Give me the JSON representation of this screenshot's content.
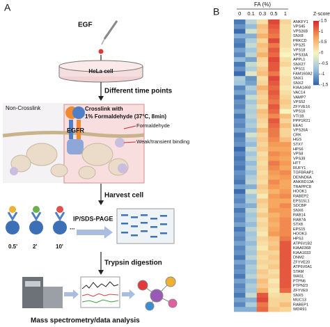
{
  "diagram": {
    "panel_label": "A",
    "egf": "EGF",
    "dish": "HeLa cell",
    "step1": "Different time points",
    "non_crosslink": "Non-Crosslink",
    "crosslink_line1": "Crosslink with",
    "crosslink_line2": "1% Formaldehyde (37°C, 8min)",
    "receptor": "EGFR",
    "legend_formaldehyde": "Formaldehyde",
    "legend_binding": "Weak/transient binding",
    "step2": "Harvest cell",
    "step3": "IP/SDS-PAGE",
    "times": [
      "0.5'",
      "2'",
      "10'",
      "..."
    ],
    "step4": "Trypsin digestion",
    "step5": "Mass spectrometry/data analysis"
  },
  "chart_data": {
    "type": "heatmap",
    "panel_label": "B",
    "x_label": "FA (%)",
    "columns": [
      "0",
      "0.1",
      "0.3",
      "0.5",
      "1"
    ],
    "rows": [
      "ANKFY1",
      "VPS45",
      "VPS26B",
      "SNX8",
      "PRKCD",
      "VPS25",
      "VPS18",
      "VPS33A",
      "APPL1",
      "SNX27",
      "VPS11",
      "FAM160A2",
      "SNX1",
      "SNX2",
      "KIAA1468",
      "VAC14",
      "VAMP7",
      "VPS52",
      "ZFYVE16",
      "VPS16",
      "VTI1B",
      "PPP1R21",
      "EEA1",
      "VPS26A",
      "CRK",
      "HGS",
      "STX7",
      "HPS6",
      "VPS8",
      "VPS39",
      "HTT",
      "RUFY1",
      "TGFBRAP1",
      "DENND6A",
      "ANKRD13A",
      "TRAPPC8",
      "HOOK1",
      "RABEP2",
      "EPS15L1",
      "SDCBP",
      "SNX6",
      "RAB14",
      "RAB7A",
      "STX8",
      "EPS15",
      "HOOK3",
      "HPS3",
      "ATP6V1B2",
      "KIAA0368",
      "KIAA1033",
      "DNM2",
      "ZFYVE20",
      "ATP6V0A1",
      "STAM",
      "WASL",
      "PTPN6",
      "PTPN23",
      "ZFYVE9",
      "SNX5",
      "MUC13",
      "RABEP1",
      "WDR91"
    ],
    "values": [
      [
        -1.3,
        -0.5,
        0.2,
        1.3,
        0.3
      ],
      [
        -1.1,
        -0.8,
        0.5,
        1.2,
        0.2
      ],
      [
        -1.4,
        -0.3,
        0.4,
        1.1,
        0.2
      ],
      [
        -0.9,
        -0.9,
        0.6,
        1.0,
        0.2
      ],
      [
        -1.2,
        -0.6,
        0.3,
        1.3,
        0.2
      ],
      [
        -1.3,
        -0.4,
        0.5,
        1.0,
        0.2
      ],
      [
        -1.0,
        -0.7,
        0.4,
        1.2,
        0.1
      ],
      [
        -1.2,
        -0.5,
        0.6,
        1.1,
        0.0
      ],
      [
        -0.8,
        -1.0,
        0.3,
        1.3,
        0.2
      ],
      [
        -1.3,
        -0.4,
        0.2,
        1.2,
        0.3
      ],
      [
        -1.1,
        -0.6,
        0.4,
        1.2,
        0.1
      ],
      [
        -1.4,
        -0.2,
        0.5,
        1.0,
        0.1
      ],
      [
        -0.6,
        -1.1,
        0.2,
        1.3,
        0.2
      ],
      [
        -0.7,
        -1.0,
        0.3,
        1.2,
        0.2
      ],
      [
        -1.2,
        -0.6,
        0.6,
        1.1,
        0.1
      ],
      [
        -1.0,
        -0.8,
        0.4,
        1.2,
        0.2
      ],
      [
        -1.3,
        -0.4,
        0.3,
        1.1,
        0.3
      ],
      [
        -1.1,
        -0.7,
        0.4,
        1.0,
        0.4
      ],
      [
        -1.2,
        -0.5,
        0.2,
        1.2,
        0.3
      ],
      [
        -1.0,
        -0.6,
        0.5,
        1.1,
        0.0
      ],
      [
        -1.3,
        -0.5,
        0.4,
        0.9,
        0.5
      ],
      [
        -1.1,
        -0.7,
        0.3,
        1.2,
        0.3
      ],
      [
        -1.2,
        -0.6,
        0.2,
        1.1,
        0.5
      ],
      [
        -1.0,
        -0.8,
        0.5,
        1.0,
        0.3
      ],
      [
        -1.3,
        -0.3,
        0.3,
        1.0,
        0.3
      ],
      [
        -1.2,
        -0.6,
        0.4,
        0.9,
        0.5
      ],
      [
        -1.1,
        -0.8,
        0.3,
        0.8,
        0.8
      ],
      [
        -1.4,
        -0.4,
        0.4,
        0.7,
        0.7
      ],
      [
        -1.2,
        -0.7,
        0.2,
        0.9,
        0.8
      ],
      [
        -1.3,
        -0.5,
        0.3,
        0.8,
        0.7
      ],
      [
        -1.2,
        -0.8,
        0.2,
        1.0,
        0.8
      ],
      [
        -1.3,
        -0.6,
        0.3,
        0.9,
        0.7
      ],
      [
        -1.1,
        -0.8,
        0.2,
        0.8,
        0.9
      ],
      [
        -1.2,
        -0.6,
        0.3,
        0.7,
        0.8
      ],
      [
        -1.3,
        -0.5,
        0.2,
        0.9,
        0.7
      ],
      [
        -1.0,
        -0.9,
        0.4,
        0.8,
        0.7
      ],
      [
        -1.4,
        -0.3,
        0.3,
        0.6,
        0.8
      ],
      [
        -1.1,
        -0.7,
        0.1,
        0.8,
        0.9
      ],
      [
        -1.2,
        -0.6,
        0.4,
        0.7,
        0.7
      ],
      [
        -1.0,
        -0.9,
        0.3,
        0.7,
        0.9
      ],
      [
        -1.3,
        -0.5,
        0.2,
        0.8,
        0.8
      ],
      [
        -1.1,
        -0.7,
        0.4,
        0.6,
        0.8
      ],
      [
        -1.2,
        -0.6,
        0.2,
        0.7,
        0.9
      ],
      [
        -1.0,
        -0.8,
        0.3,
        0.6,
        0.9
      ],
      [
        -1.3,
        -0.5,
        0.2,
        0.7,
        0.9
      ],
      [
        -1.1,
        -0.7,
        0.1,
        0.8,
        0.9
      ],
      [
        -1.2,
        -0.6,
        0.3,
        0.5,
        1.0
      ],
      [
        -1.0,
        -0.8,
        0.2,
        0.4,
        1.2
      ],
      [
        -1.2,
        -0.6,
        0.1,
        0.5,
        1.2
      ],
      [
        -1.1,
        -0.7,
        0.3,
        0.3,
        1.2
      ],
      [
        -1.3,
        -0.5,
        0.2,
        0.4,
        1.2
      ],
      [
        -1.0,
        -0.8,
        0.3,
        0.3,
        1.2
      ],
      [
        -1.2,
        -0.6,
        0.2,
        0.4,
        1.2
      ],
      [
        -1.1,
        -0.7,
        0.4,
        0.2,
        1.2
      ],
      [
        -1.3,
        -0.5,
        0.3,
        0.3,
        1.2
      ],
      [
        -1.0,
        -0.8,
        0.5,
        0.1,
        1.2
      ],
      [
        -1.2,
        -0.6,
        0.4,
        0.2,
        1.2
      ],
      [
        -1.1,
        -0.7,
        0.6,
        0.1,
        1.1
      ],
      [
        -1.3,
        -0.4,
        1.2,
        0.2,
        0.3
      ],
      [
        -1.0,
        -0.9,
        1.3,
        0.3,
        0.3
      ],
      [
        -1.2,
        -0.6,
        1.0,
        0.3,
        0.5
      ],
      [
        -0.9,
        -0.9,
        1.1,
        0.4,
        0.3
      ]
    ],
    "colorbar_label": "Z-score",
    "clim": [
      -1.5,
      1.5
    ],
    "cticks": [
      -1.5,
      -1,
      -0.5,
      0,
      0.5,
      1,
      1.5
    ],
    "colorscale": [
      "#2c5fa8",
      "#9cc3de",
      "#f8f4c0",
      "#f6a35a",
      "#d7262b"
    ]
  }
}
